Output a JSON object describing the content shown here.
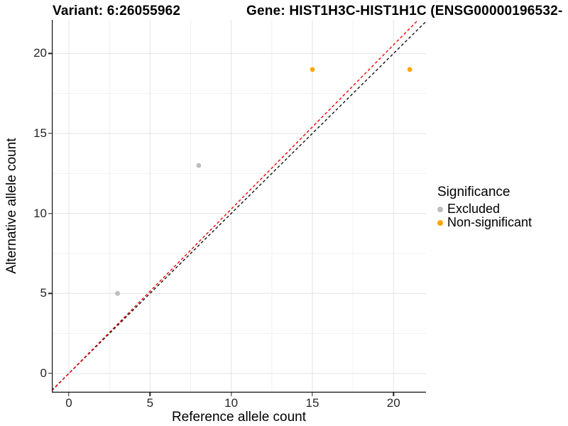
{
  "chart_data": {
    "type": "scatter",
    "titles": {
      "left": "Variant: 6:26055962",
      "right": "Gene: HIST1H3C-HIST1H1C (ENSG00000196532-"
    },
    "xlabel": "Reference allele count",
    "ylabel": "Alternative allele count",
    "xlim": [
      -1.05,
      22.0
    ],
    "ylim": [
      -1.2,
      22.1
    ],
    "x_ticks": [
      0,
      5,
      10,
      15,
      20
    ],
    "y_ticks": [
      0,
      5,
      10,
      15,
      20
    ],
    "x_minor": [
      2.5,
      7.5,
      12.5,
      17.5
    ],
    "y_minor": [
      2.5,
      7.5,
      12.5,
      17.5
    ],
    "grid": {
      "major_color": "#e3e3e3",
      "minor_color": "#f1f1f1",
      "on": true
    },
    "axis_color": "#111111",
    "series": [
      {
        "name": "Excluded",
        "color": "#bebebe",
        "points": [
          [
            3,
            5
          ],
          [
            8,
            13
          ]
        ]
      },
      {
        "name": "Non-significant",
        "color": "#ffa500",
        "points": [
          [
            15,
            19
          ],
          [
            21,
            19
          ]
        ]
      }
    ],
    "ref_lines": [
      {
        "name": "identity-line",
        "color": "#111111",
        "style": "dashed",
        "slope": 1.0,
        "intercept": 0
      },
      {
        "name": "fitted-line",
        "color": "#f40000",
        "style": "dashed",
        "slope": 1.027,
        "intercept": 0
      }
    ],
    "legend": {
      "title": "Significance",
      "position": "right"
    }
  }
}
